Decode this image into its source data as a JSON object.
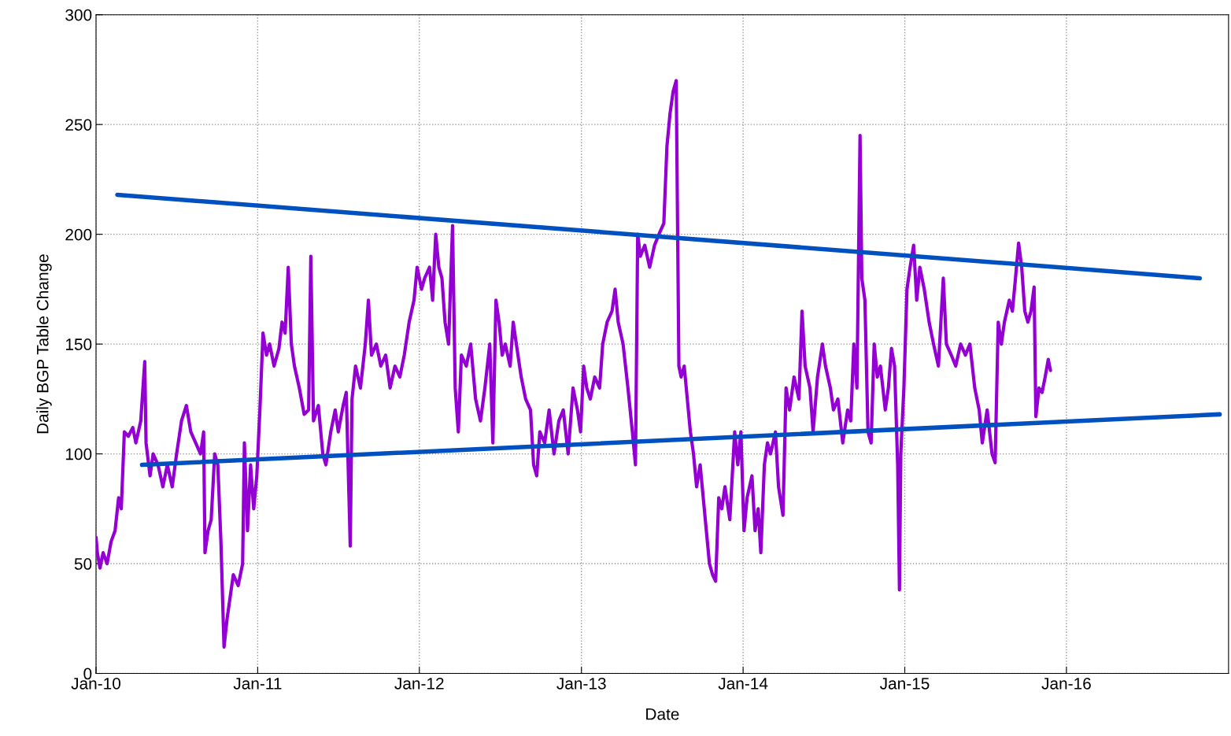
{
  "chart_data": {
    "type": "line",
    "xlabel": "Date",
    "ylabel": "Daily BGP Table Change",
    "xlim": [
      "2010-01-01",
      "2017-01-01"
    ],
    "xticks": [
      {
        "value": "2010-01-01",
        "label": "Jan-10"
      },
      {
        "value": "2011-01-01",
        "label": "Jan-11"
      },
      {
        "value": "2012-01-01",
        "label": "Jan-12"
      },
      {
        "value": "2013-01-01",
        "label": "Jan-13"
      },
      {
        "value": "2014-01-01",
        "label": "Jan-14"
      },
      {
        "value": "2015-01-01",
        "label": "Jan-15"
      },
      {
        "value": "2016-01-01",
        "label": "Jan-16"
      }
    ],
    "ylim": [
      0,
      300
    ],
    "yticks": [
      0,
      50,
      100,
      150,
      200,
      250,
      300
    ],
    "grid": true,
    "marker": "none",
    "line_style": "solid",
    "series": [
      {
        "color": "#9400d3",
        "x": [
          "2010-01-01",
          "2010-01-04",
          "2010-01-10",
          "2010-01-17",
          "2010-01-26",
          "2010-02-04",
          "2010-02-13",
          "2010-02-21",
          "2010-02-27",
          "2010-03-06",
          "2010-03-15",
          "2010-03-25",
          "2010-04-01",
          "2010-04-12",
          "2010-04-21",
          "2010-04-24",
          "2010-05-03",
          "2010-05-10",
          "2010-05-21",
          "2010-06-01",
          "2010-06-11",
          "2010-06-22",
          "2010-07-02",
          "2010-07-13",
          "2010-07-24",
          "2010-08-03",
          "2010-08-14",
          "2010-08-25",
          "2010-09-01",
          "2010-09-04",
          "2010-09-11",
          "2010-09-18",
          "2010-09-26",
          "2010-10-03",
          "2010-10-10",
          "2010-10-17",
          "2010-10-24",
          "2010-10-31",
          "2010-11-07",
          "2010-11-18",
          "2010-11-28",
          "2010-12-02",
          "2010-12-09",
          "2010-12-16",
          "2010-12-23",
          "2010-12-30",
          "2011-01-06",
          "2011-01-13",
          "2011-01-21",
          "2011-01-28",
          "2011-02-07",
          "2011-02-18",
          "2011-02-25",
          "2011-03-04",
          "2011-03-11",
          "2011-03-18",
          "2011-03-25",
          "2011-04-05",
          "2011-04-16",
          "2011-04-26",
          "2011-05-01",
          "2011-05-07",
          "2011-05-18",
          "2011-05-28",
          "2011-06-04",
          "2011-06-15",
          "2011-06-25",
          "2011-07-02",
          "2011-07-13",
          "2011-07-20",
          "2011-07-29",
          "2011-08-02",
          "2011-08-10",
          "2011-08-21",
          "2011-09-01",
          "2011-09-08",
          "2011-09-15",
          "2011-09-26",
          "2011-10-06",
          "2011-10-17",
          "2011-10-27",
          "2011-11-07",
          "2011-11-18",
          "2011-11-28",
          "2011-12-09",
          "2011-12-20",
          "2011-12-27",
          "2012-01-06",
          "2012-01-13",
          "2012-01-24",
          "2012-01-31",
          "2012-02-07",
          "2012-02-14",
          "2012-02-21",
          "2012-02-28",
          "2012-03-07",
          "2012-03-16",
          "2012-03-22",
          "2012-03-29",
          "2012-04-05",
          "2012-04-16",
          "2012-04-26",
          "2012-05-07",
          "2012-05-18",
          "2012-05-28",
          "2012-06-08",
          "2012-06-15",
          "2012-06-22",
          "2012-06-29",
          "2012-07-06",
          "2012-07-13",
          "2012-07-24",
          "2012-07-31",
          "2012-08-07",
          "2012-08-18",
          "2012-08-28",
          "2012-09-08",
          "2012-09-15",
          "2012-09-22",
          "2012-09-29",
          "2012-10-10",
          "2012-10-20",
          "2012-10-31",
          "2012-11-11",
          "2012-11-21",
          "2012-12-02",
          "2012-12-13",
          "2012-12-23",
          "2012-12-30",
          "2013-01-06",
          "2013-01-13",
          "2013-01-21",
          "2013-01-31",
          "2013-02-11",
          "2013-02-18",
          "2013-02-28",
          "2013-03-11",
          "2013-03-18",
          "2013-03-25",
          "2013-04-05",
          "2013-04-16",
          "2013-04-26",
          "2013-05-03",
          "2013-05-08",
          "2013-05-14",
          "2013-05-24",
          "2013-06-04",
          "2013-06-15",
          "2013-06-25",
          "2013-07-06",
          "2013-07-13",
          "2013-07-20",
          "2013-07-27",
          "2013-08-03",
          "2013-08-09",
          "2013-08-14",
          "2013-08-21",
          "2013-08-28",
          "2013-09-04",
          "2013-09-11",
          "2013-09-18",
          "2013-09-26",
          "2013-10-03",
          "2013-10-10",
          "2013-10-17",
          "2013-10-24",
          "2013-10-31",
          "2013-11-07",
          "2013-11-14",
          "2013-11-21",
          "2013-12-02",
          "2013-12-13",
          "2013-12-20",
          "2013-12-27",
          "2014-01-03",
          "2014-01-10",
          "2014-01-21",
          "2014-01-28",
          "2014-02-04",
          "2014-02-10",
          "2014-02-18",
          "2014-02-25",
          "2014-03-04",
          "2014-03-15",
          "2014-03-22",
          "2014-04-01",
          "2014-04-08",
          "2014-04-16",
          "2014-04-26",
          "2014-05-07",
          "2014-05-14",
          "2014-05-21",
          "2014-06-01",
          "2014-06-08",
          "2014-06-18",
          "2014-06-29",
          "2014-07-06",
          "2014-07-17",
          "2014-07-24",
          "2014-08-03",
          "2014-08-14",
          "2014-08-25",
          "2014-09-01",
          "2014-09-08",
          "2014-09-15",
          "2014-09-22",
          "2014-09-26",
          "2014-10-03",
          "2014-10-10",
          "2014-10-17",
          "2014-10-24",
          "2014-10-31",
          "2014-11-07",
          "2014-11-18",
          "2014-11-25",
          "2014-12-02",
          "2014-12-09",
          "2014-12-16",
          "2014-12-20",
          "2014-12-23",
          "2014-12-30",
          "2015-01-06",
          "2015-01-13",
          "2015-01-21",
          "2015-01-28",
          "2015-02-04",
          "2015-02-14",
          "2015-02-25",
          "2015-03-07",
          "2015-03-18",
          "2015-03-29",
          "2015-04-05",
          "2015-04-16",
          "2015-04-26",
          "2015-05-07",
          "2015-05-18",
          "2015-05-28",
          "2015-06-08",
          "2015-06-18",
          "2015-06-25",
          "2015-07-06",
          "2015-07-17",
          "2015-07-24",
          "2015-07-31",
          "2015-08-07",
          "2015-08-14",
          "2015-08-25",
          "2015-09-01",
          "2015-09-08",
          "2015-09-15",
          "2015-09-22",
          "2015-09-29",
          "2015-10-06",
          "2015-10-13",
          "2015-10-20",
          "2015-10-24",
          "2015-10-31",
          "2015-11-07",
          "2015-11-14",
          "2015-11-21",
          "2015-11-26"
        ],
        "values": [
          62,
          55,
          48,
          55,
          50,
          60,
          65,
          80,
          75,
          110,
          108,
          112,
          105,
          115,
          142,
          105,
          90,
          100,
          95,
          85,
          95,
          85,
          100,
          115,
          122,
          110,
          105,
          100,
          110,
          55,
          65,
          70,
          100,
          95,
          60,
          12,
          25,
          35,
          45,
          40,
          50,
          105,
          65,
          95,
          75,
          90,
          120,
          155,
          145,
          150,
          140,
          148,
          160,
          155,
          185,
          150,
          140,
          130,
          118,
          120,
          190,
          115,
          122,
          100,
          95,
          110,
          120,
          110,
          122,
          128,
          58,
          125,
          140,
          130,
          150,
          170,
          145,
          150,
          140,
          145,
          130,
          140,
          135,
          145,
          160,
          170,
          185,
          175,
          180,
          185,
          170,
          200,
          185,
          180,
          160,
          150,
          204,
          130,
          110,
          145,
          140,
          150,
          125,
          115,
          130,
          150,
          105,
          170,
          160,
          145,
          150,
          140,
          160,
          150,
          135,
          125,
          120,
          95,
          90,
          110,
          105,
          120,
          100,
          115,
          120,
          100,
          130,
          120,
          110,
          140,
          130,
          125,
          135,
          130,
          150,
          160,
          165,
          175,
          160,
          150,
          130,
          110,
          95,
          200,
          190,
          195,
          185,
          195,
          200,
          205,
          240,
          255,
          265,
          270,
          140,
          135,
          140,
          125,
          110,
          100,
          85,
          95,
          80,
          65,
          50,
          45,
          42,
          80,
          75,
          85,
          70,
          110,
          95,
          110,
          65,
          80,
          90,
          65,
          75,
          55,
          95,
          105,
          100,
          110,
          85,
          72,
          130,
          120,
          135,
          125,
          165,
          140,
          130,
          110,
          135,
          150,
          140,
          130,
          120,
          125,
          105,
          120,
          115,
          150,
          130,
          245,
          180,
          170,
          110,
          105,
          150,
          135,
          140,
          120,
          130,
          148,
          140,
          95,
          38,
          100,
          130,
          175,
          185,
          195,
          170,
          185,
          175,
          160,
          150,
          140,
          180,
          150,
          145,
          140,
          150,
          145,
          150,
          130,
          120,
          105,
          120,
          100,
          96,
          160,
          150,
          160,
          170,
          165,
          180,
          196,
          185,
          165,
          160,
          165,
          176,
          117,
          130,
          128,
          135,
          143,
          138
        ]
      },
      {
        "color": "#0050c0",
        "x": [
          "2010-02-18",
          "2016-10-28"
        ],
        "values": [
          218,
          180
        ]
      },
      {
        "color": "#0050c0",
        "x": [
          "2010-04-15",
          "2016-12-12"
        ],
        "values": [
          95,
          118
        ]
      }
    ]
  }
}
